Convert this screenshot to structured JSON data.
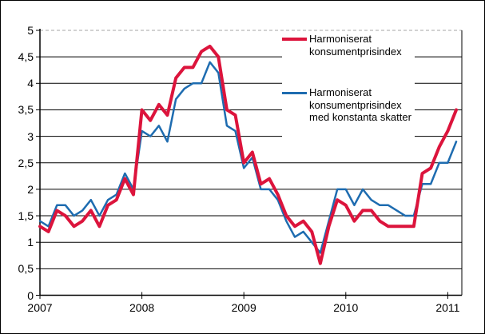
{
  "chart_data": {
    "type": "line",
    "title": "",
    "x_unit": "month",
    "x_start": "2007-01",
    "x_end": "2011-02",
    "n_points": 50,
    "ylim": [
      0,
      5
    ],
    "ytick_step": 0.5,
    "grid": "horizontal solid black lines every 0.5; top line at 5 dashed gray",
    "legend_position": "inside top-right on white box",
    "decimal_separator": ",",
    "y_ticks": [
      {
        "label": "0",
        "value": 0
      },
      {
        "label": "0,5",
        "value": 0.5
      },
      {
        "label": "1",
        "value": 1
      },
      {
        "label": "1,5",
        "value": 1.5
      },
      {
        "label": "2",
        "value": 2
      },
      {
        "label": "2,5",
        "value": 2.5
      },
      {
        "label": "3",
        "value": 3
      },
      {
        "label": "3,5",
        "value": 3.5
      },
      {
        "label": "4",
        "value": 4
      },
      {
        "label": "4,5",
        "value": 4.5
      },
      {
        "label": "5",
        "value": 5
      }
    ],
    "x_ticks": [
      {
        "label": "2007",
        "month": 0
      },
      {
        "label": "2008",
        "month": 12
      },
      {
        "label": "2009",
        "month": 24
      },
      {
        "label": "2010",
        "month": 36
      },
      {
        "label": "2011",
        "month": 48
      }
    ],
    "series": [
      {
        "name": "Harmoniserat konsumentprisindex",
        "color": "#dc143c",
        "stroke_width": 4,
        "values": [
          1.3,
          1.2,
          1.6,
          1.5,
          1.3,
          1.4,
          1.6,
          1.3,
          1.7,
          1.8,
          2.2,
          1.9,
          3.5,
          3.3,
          3.6,
          3.4,
          4.1,
          4.3,
          4.3,
          4.6,
          4.7,
          4.5,
          3.5,
          3.4,
          2.5,
          2.7,
          2.1,
          2.2,
          1.9,
          1.5,
          1.3,
          1.4,
          1.2,
          0.6,
          1.3,
          1.8,
          1.7,
          1.4,
          1.6,
          1.6,
          1.4,
          1.3,
          1.3,
          1.3,
          1.3,
          2.3,
          2.4,
          2.8,
          3.1,
          3.5
        ]
      },
      {
        "name": "Harmoniserat konsumentprisindex med konstanta skatter",
        "color": "#1e6cb0",
        "stroke_width": 2.5,
        "values": [
          1.4,
          1.3,
          1.7,
          1.7,
          1.5,
          1.6,
          1.8,
          1.5,
          1.8,
          1.9,
          2.3,
          2.0,
          3.1,
          3.0,
          3.2,
          2.9,
          3.7,
          3.9,
          4.0,
          4.0,
          4.4,
          4.2,
          3.2,
          3.1,
          2.4,
          2.6,
          2.0,
          2.0,
          1.8,
          1.4,
          1.1,
          1.2,
          1.0,
          0.8,
          1.4,
          2.0,
          2.0,
          1.7,
          2.0,
          1.8,
          1.7,
          1.7,
          1.6,
          1.5,
          1.5,
          2.1,
          2.1,
          2.5,
          2.5,
          2.9
        ]
      }
    ],
    "colors": {
      "gridline": "#000000",
      "top_gridline_dashed": "#a6a6a6",
      "axis": "#000000",
      "background": "#ffffff"
    }
  }
}
